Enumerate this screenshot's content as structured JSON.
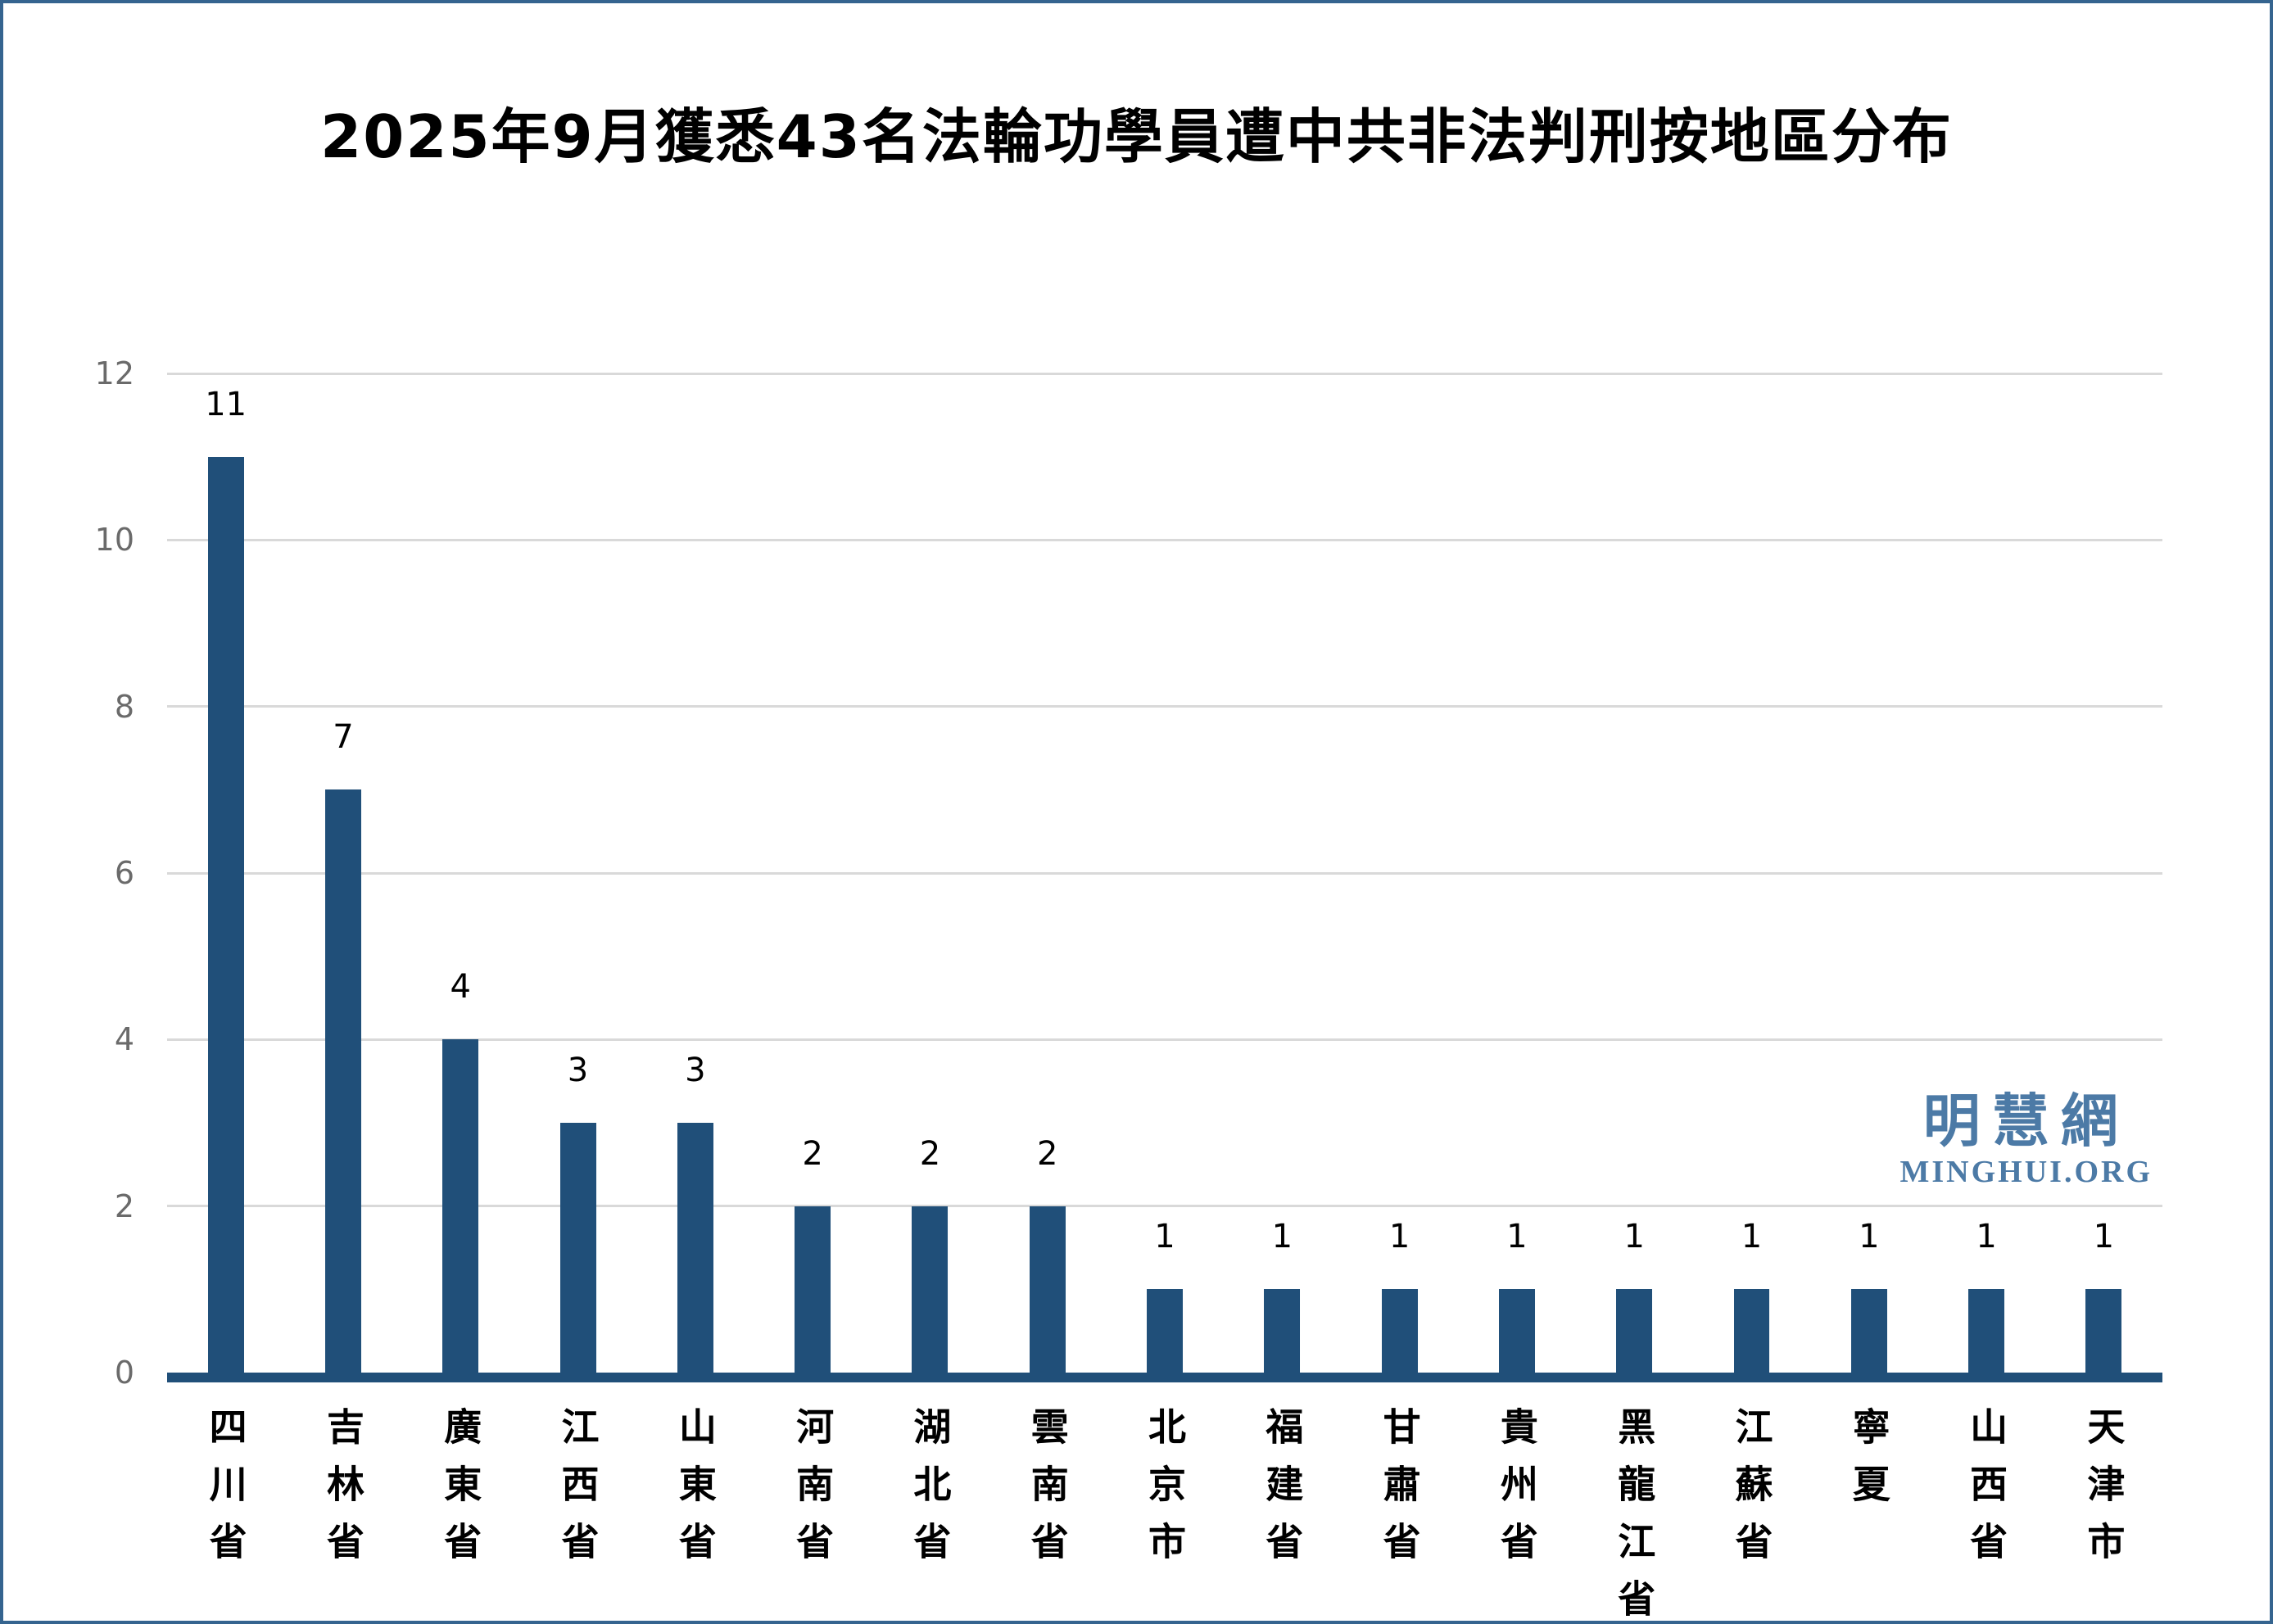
{
  "title": "2025年9月獲悉43名法輪功學員遭中共非法判刑按地區分布",
  "watermark": {
    "cjk": "明慧網",
    "latin": "MINGHUI.ORG",
    "color": "#4c7aa6"
  },
  "chart_data": {
    "type": "bar",
    "title": "2025年9月獲悉43名法輪功學員遭中共非法判刑按地區分布",
    "categories": [
      "四川省",
      "吉林省",
      "廣東省",
      "江西省",
      "山東省",
      "河南省",
      "湖北省",
      "雲南省",
      "北京市",
      "福建省",
      "甘肅省",
      "貴州省",
      "黑龍江省",
      "江蘇省",
      "寧夏",
      "山西省",
      "天津市"
    ],
    "values": [
      11,
      7,
      4,
      3,
      3,
      2,
      2,
      2,
      1,
      1,
      1,
      1,
      1,
      1,
      1,
      1,
      1
    ],
    "total": 43,
    "xlabel": "",
    "ylabel": "",
    "ylim": [
      0,
      12
    ],
    "yticks": [
      0,
      2,
      4,
      6,
      8,
      10,
      12
    ],
    "grid": true,
    "legend": false,
    "value_labels": true,
    "bar_color": "#204f79",
    "axis_line_color": "#204f79",
    "gridline_color": "#d9d9d9",
    "tick_label_color": "#6a6a6a",
    "value_label_color": "#000000"
  }
}
